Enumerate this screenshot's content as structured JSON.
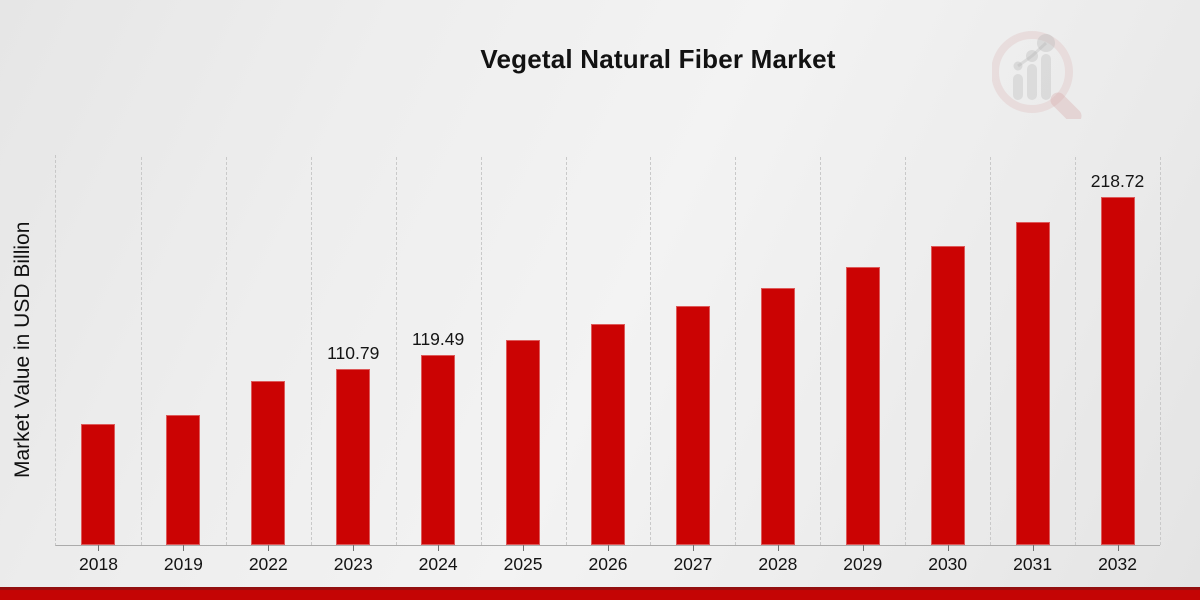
{
  "accent_color": "#cb0303",
  "banner_color": "#c40404",
  "logo_icon": "bar-chart-magnifier-watermark",
  "chart_data": {
    "type": "bar",
    "title": "Vegetal Natural Fiber Market",
    "xlabel": "",
    "ylabel": "Market Value in USD Billion",
    "categories": [
      "2018",
      "2019",
      "2022",
      "2023",
      "2024",
      "2025",
      "2026",
      "2027",
      "2028",
      "2029",
      "2030",
      "2031",
      "2032"
    ],
    "values": [
      75.95,
      81.91,
      102.73,
      110.79,
      119.49,
      128.87,
      138.98,
      149.89,
      161.66,
      174.34,
      188.03,
      202.79,
      218.72
    ],
    "value_labels": [
      "",
      "",
      "",
      "110.79",
      "119.49",
      "",
      "",
      "",
      "",
      "",
      "",
      "",
      "218.72"
    ],
    "ylim": [
      0,
      245
    ],
    "grid": "vertical-dashed",
    "legend": "none",
    "bar_color": "#cb0303"
  }
}
